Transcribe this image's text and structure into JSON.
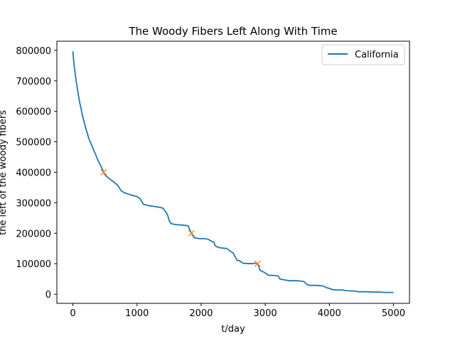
{
  "chart_data": {
    "type": "line",
    "title": "The Woody Fibers Left Along With Time",
    "xlabel": "t/day",
    "ylabel": "the left of the woody fibers",
    "xlim": [
      -250,
      5250
    ],
    "ylim": [
      -30000,
      830000
    ],
    "xticks": [
      0,
      1000,
      2000,
      3000,
      4000,
      5000
    ],
    "yticks": [
      0,
      100000,
      200000,
      300000,
      400000,
      500000,
      600000,
      700000,
      800000
    ],
    "grid": false,
    "legend_position": "top-right",
    "colors": {
      "line": "#1f77b4",
      "markers": "#ff7f0e"
    },
    "series": [
      {
        "name": "California",
        "x": [
          0,
          20,
          50,
          100,
          150,
          200,
          250,
          300,
          350,
          400,
          450,
          480,
          500,
          550,
          600,
          650,
          700,
          750,
          800,
          900,
          1000,
          1050,
          1100,
          1200,
          1300,
          1400,
          1450,
          1480,
          1500,
          1530,
          1560,
          1620,
          1700,
          1750,
          1800,
          1820,
          1850,
          1870,
          1900,
          1950,
          2000,
          2050,
          2100,
          2200,
          2220,
          2250,
          2300,
          2400,
          2450,
          2500,
          2560,
          2600,
          2650,
          2700,
          2800,
          2850,
          2880,
          2900,
          2920,
          2950,
          3000,
          3050,
          3100,
          3150,
          3200,
          3230,
          3300,
          3350,
          3400,
          3450,
          3500,
          3600,
          3650,
          3700,
          3800,
          3900,
          3950,
          4000,
          4050,
          4100,
          4200,
          4250,
          4300,
          4400,
          4450,
          4500,
          4600,
          4700,
          4800,
          4850,
          4900,
          5000
        ],
        "values": [
          797000,
          750000,
          700000,
          635000,
          585000,
          545000,
          510000,
          485000,
          460000,
          435000,
          415000,
          400000,
          392000,
          382000,
          374000,
          366000,
          357000,
          340000,
          333000,
          326000,
          320000,
          313000,
          295000,
          290000,
          287000,
          283000,
          270000,
          258000,
          242000,
          232000,
          230000,
          228000,
          227000,
          226000,
          224000,
          212000,
          200000,
          192000,
          185000,
          183000,
          182000,
          182000,
          181000,
          170000,
          159000,
          155000,
          152000,
          150000,
          142000,
          135000,
          111000,
          110000,
          102000,
          101000,
          100000,
          102000,
          100000,
          90000,
          78000,
          75000,
          70000,
          62000,
          62000,
          61000,
          60000,
          50000,
          47000,
          45000,
          44000,
          44000,
          44000,
          42000,
          32000,
          29000,
          29000,
          27000,
          22000,
          19000,
          15000,
          14000,
          14000,
          12000,
          11000,
          10000,
          8000,
          8000,
          8000,
          7000,
          7000,
          6000,
          6000,
          6000
        ]
      }
    ],
    "markers": {
      "x": [
        480,
        1850,
        2880
      ],
      "values": [
        400000,
        200000,
        100000
      ]
    }
  }
}
